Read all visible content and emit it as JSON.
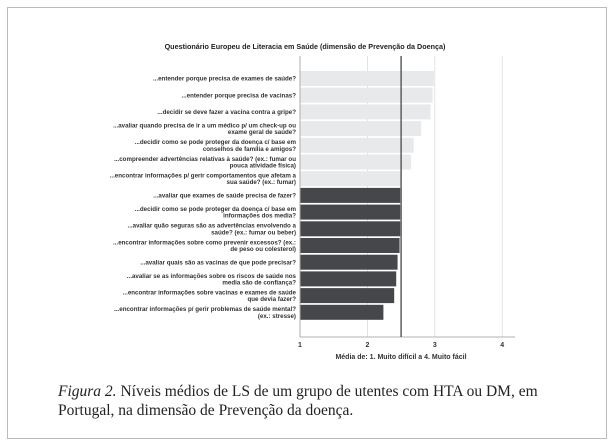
{
  "chart_data": {
    "type": "bar",
    "orientation": "horizontal",
    "title": "Questionário Europeu de Literacia em Saúde (dimensão de Prevenção da Doença)",
    "xlabel": "Média de: 1. Muito difícil a 4. Muito fácil",
    "ylabel": "",
    "xlim": [
      1,
      4
    ],
    "xticks": [
      "1",
      "2",
      "3",
      "4"
    ],
    "reference_line": 2.5,
    "grid": true,
    "categories": [
      [
        "...entender porque precisa de exames de saúde?"
      ],
      [
        "...entender porque precisa de vacinas?"
      ],
      [
        "...decidir se deve fazer a vacina contra a gripe?"
      ],
      [
        "...avaliar quando precisa de ir a um médico p/ um check-up ou",
        "exame geral de saúde?"
      ],
      [
        "...decidir como se pode proteger da doença c/ base em",
        "conselhos de família e amigos?"
      ],
      [
        "...compreender advertências relativas à saúde? (ex.: fumar ou",
        "pouca atividade física)"
      ],
      [
        "...encontrar informações p/ gerir comportamentos que afetam a",
        "sua saúde? (ex.: fumar)"
      ],
      [
        "...avaliar que exames de saúde precisa de fazer?"
      ],
      [
        "...decidir como se pode proteger da doença c/ base em",
        "informações dos media?"
      ],
      [
        "...avaliar quão seguras são as advertências envolvendo a",
        "saúde? (ex.: fumar ou beber)"
      ],
      [
        "...encontrar informações sobre como prevenir excessos? (ex.:",
        "de peso ou colesterol)"
      ],
      [
        "...avaliar quais são as vacinas de que pode precisar?"
      ],
      [
        "...avaliar se as informações sobre os riscos de saúde nos",
        "media são de confiança?"
      ],
      [
        "...encontrar informações sobre vacinas e exames de saúde",
        "que devia fazer?"
      ],
      [
        "...encontrar informações p/ gerir problemas de saúde mental?",
        "(ex.: stresse)"
      ]
    ],
    "values": [
      2.98,
      2.96,
      2.93,
      2.79,
      2.68,
      2.64,
      2.5,
      2.48,
      2.48,
      2.48,
      2.47,
      2.44,
      2.42,
      2.39,
      2.23
    ],
    "colors": {
      "above": "#e8e9eb",
      "below": "#45474a",
      "reference": "#555555",
      "grid": "#d8d8d8"
    }
  },
  "caption": {
    "label": "Figura 2.",
    "text": " Níveis médios de LS de um grupo de utentes com HTA ou DM, em Portugal, na dimensão de Prevenção da doença."
  }
}
